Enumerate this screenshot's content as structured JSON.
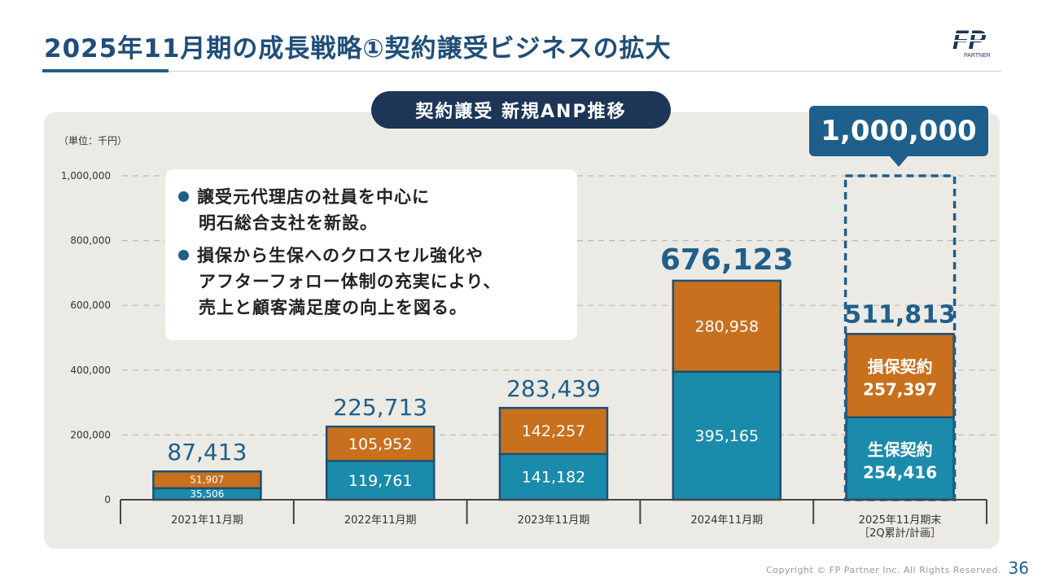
{
  "slide": {
    "title": "2025年11月期の成長戦略①契約譲受ビジネスの拡大",
    "logo_text": "PARTNER",
    "footer": "Copyright © FP Partner Inc. All Rights Reserved.",
    "page_number": "36"
  },
  "callout": {
    "bullets": [
      {
        "line1": "譲受元代理店の社員を中心に",
        "line2": "明石総合支社を新設。"
      },
      {
        "line1": "損保から生保へのクロスセル強化や",
        "line2": "アフターフォロー体制の充実により、",
        "line3": "売上と顧客満足度の向上を図る。"
      }
    ]
  },
  "target": {
    "value_label": "1,000,000"
  },
  "colors": {
    "life": "#1b8bab",
    "nonlife": "#c8701e",
    "navy": "#1f5f8b",
    "axis": "#444444"
  },
  "chart_data": {
    "type": "bar",
    "stacked": true,
    "title": "契約譲受 新規ANP推移",
    "units_label": "（単位：千円）",
    "categories": [
      "2021年11月期",
      "2022年11月期",
      "2023年11月期",
      "2024年11月期",
      "2025年11月期末"
    ],
    "category_sublabels": [
      "",
      "",
      "",
      "",
      "［2Q累計/計画］"
    ],
    "series": [
      {
        "values": [
          35506,
          119761,
          141182,
          395165,
          254416
        ],
        "labels": [
          "35,506",
          "119,761",
          "141,182",
          "395,165",
          "254,416"
        ]
      },
      {
        "values": [
          51907,
          105952,
          142257,
          280958,
          257397
        ],
        "labels": [
          "51,907",
          "105,952",
          "142,257",
          "280,958",
          "257,397"
        ]
      }
    ],
    "totals": [
      87413,
      225713,
      283439,
      676123,
      511813
    ],
    "total_labels": [
      "87,413",
      "225,713",
      "283,439",
      "676,123",
      "511,813"
    ],
    "highlight_labels": {
      "life": "生保契約",
      "nonlife": "損保契約"
    },
    "target_value": 1000000,
    "ylim": [
      0,
      1000000
    ],
    "yticks": [
      0,
      200000,
      400000,
      600000,
      800000,
      1000000
    ],
    "ytick_labels": [
      "0",
      "200,000",
      "400,000",
      "600,000",
      "800,000",
      "1,000,000"
    ],
    "grid": true
  }
}
